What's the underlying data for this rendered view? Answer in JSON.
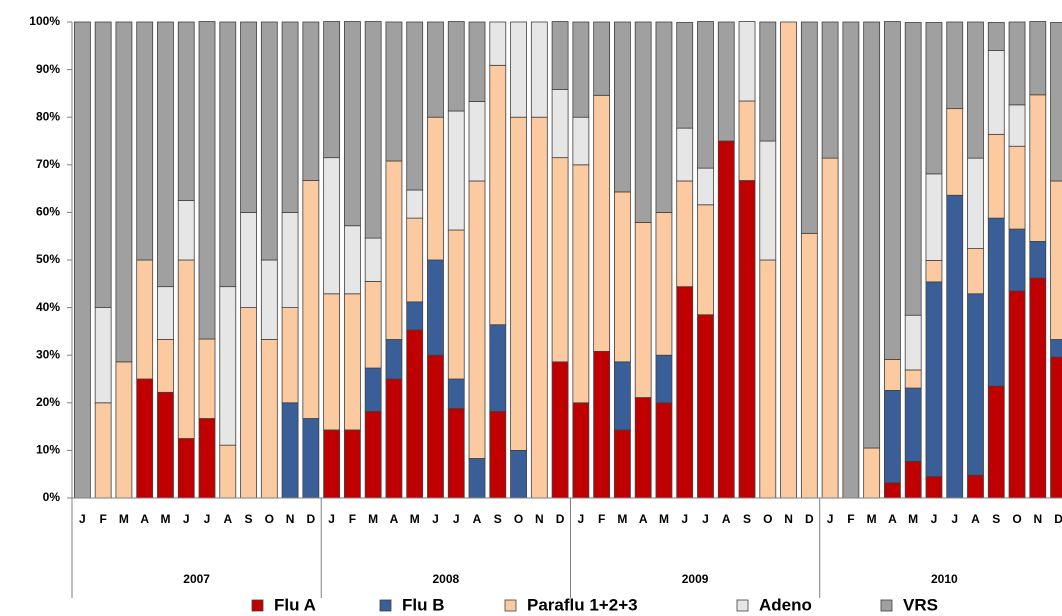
{
  "chart_data": {
    "type": "stacked_bar_100",
    "categories": [
      "J",
      "F",
      "M",
      "A",
      "M",
      "J",
      "J",
      "A",
      "S",
      "O",
      "N",
      "D",
      "J",
      "F",
      "M",
      "A",
      "M",
      "J",
      "J",
      "A",
      "S",
      "O",
      "N",
      "D",
      "J",
      "F",
      "M",
      "A",
      "M",
      "J",
      "J",
      "A",
      "S",
      "O",
      "N",
      "D",
      "J",
      "F",
      "M",
      "A",
      "M",
      "J",
      "J",
      "A",
      "S",
      "O",
      "N",
      "D"
    ],
    "years": [
      "2007",
      "2008",
      "2009",
      "2010"
    ],
    "ylim": [
      0,
      100
    ],
    "yticks": [
      {
        "value": 0,
        "label": "0%"
      },
      {
        "value": 10,
        "label": "10%"
      },
      {
        "value": 20,
        "label": "20%"
      },
      {
        "value": 30,
        "label": "30%"
      },
      {
        "value": 40,
        "label": "40%"
      },
      {
        "value": 50,
        "label": "50%"
      },
      {
        "value": 60,
        "label": "60%"
      },
      {
        "value": 70,
        "label": "70%"
      },
      {
        "value": 80,
        "label": "80%"
      },
      {
        "value": 90,
        "label": "90%"
      },
      {
        "value": 100,
        "label": "100%"
      }
    ],
    "grid": false,
    "series": [
      {
        "name": "Flu A",
        "color": "#c00000",
        "values": [
          0,
          0,
          0,
          25,
          22.2,
          12.5,
          16.7,
          0,
          0,
          0,
          0,
          0,
          14.3,
          14.3,
          18.2,
          25,
          35.3,
          30,
          18.8,
          0,
          18.2,
          0,
          0,
          28.6,
          20,
          30.8,
          14.3,
          21.1,
          20,
          44.4,
          38.5,
          75,
          66.7,
          0,
          0,
          0,
          0,
          0,
          0,
          3.2,
          7.7,
          4.5,
          0,
          4.8,
          23.5,
          43.5,
          46.2,
          29.6
        ]
      },
      {
        "name": "Flu B",
        "color": "#3a5f98",
        "values": [
          0,
          0,
          0,
          0,
          0,
          0,
          0,
          0,
          0,
          0,
          20,
          16.7,
          0,
          0,
          9.1,
          8.3,
          5.9,
          20,
          6.2,
          8.3,
          18.2,
          10,
          0,
          0,
          0,
          0,
          14.3,
          0,
          10,
          0,
          0,
          0,
          0,
          0,
          0,
          0,
          0,
          0,
          0,
          19.4,
          15.4,
          40.9,
          63.6,
          38.1,
          35.3,
          13,
          7.7,
          3.7
        ]
      },
      {
        "name": "Paraflu 1+2+3",
        "color": "#fbcaa0",
        "values": [
          0,
          20,
          28.6,
          25,
          11.1,
          37.5,
          16.7,
          11.1,
          40,
          33.3,
          20,
          50,
          28.6,
          28.6,
          18.2,
          37.5,
          17.6,
          30,
          31.3,
          58.3,
          54.5,
          70,
          80,
          42.9,
          50,
          53.8,
          35.7,
          36.8,
          30,
          22.2,
          23.1,
          0,
          16.7,
          50,
          100,
          55.6,
          71.4,
          0,
          10.5,
          6.5,
          3.8,
          4.5,
          18.2,
          9.5,
          17.6,
          17.4,
          30.8,
          33.3
        ]
      },
      {
        "name": "Adeno",
        "color": "#e6e6e6",
        "values": [
          0,
          20,
          0,
          0,
          11.1,
          12.5,
          0,
          33.3,
          20,
          16.7,
          20,
          0,
          28.6,
          14.3,
          9.1,
          0,
          5.9,
          0,
          25,
          16.7,
          9.1,
          20,
          20,
          14.3,
          10,
          0,
          0,
          0,
          0,
          11.1,
          7.7,
          0,
          16.7,
          25,
          0,
          0,
          0,
          0,
          0,
          0,
          11.5,
          18.2,
          0,
          19,
          17.6,
          8.7,
          0,
          0
        ]
      },
      {
        "name": "VRS",
        "color": "#a0a0a0",
        "values": [
          100,
          60,
          71.4,
          50,
          55.6,
          37.5,
          66.7,
          55.6,
          40,
          50,
          40,
          33.3,
          28.6,
          42.9,
          45.5,
          29.2,
          35.3,
          20,
          18.8,
          16.7,
          0,
          0,
          0,
          14.3,
          20,
          15.4,
          35.7,
          42.1,
          40,
          22.2,
          30.8,
          25,
          0,
          25,
          0,
          44.4,
          28.6,
          100,
          89.5,
          71,
          61.5,
          31.8,
          18.2,
          28.6,
          5.9,
          17.4,
          15.4,
          33.3
        ]
      }
    ]
  }
}
